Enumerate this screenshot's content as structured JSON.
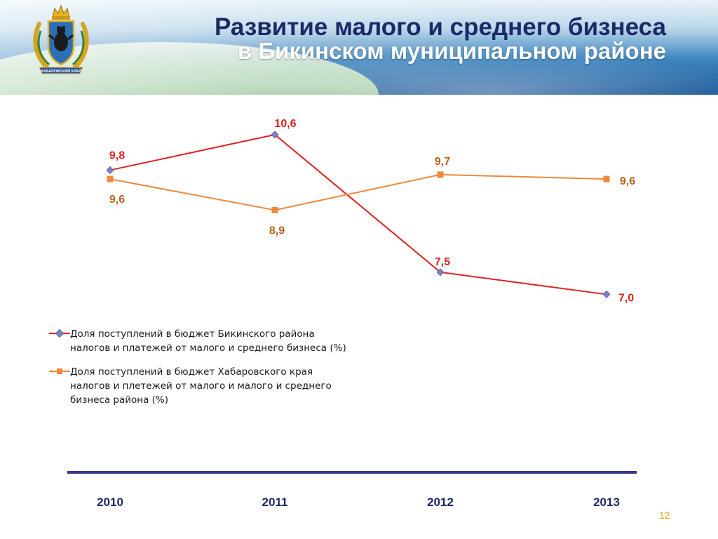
{
  "header": {
    "title_line1": "Развитие малого и среднего бизнеса",
    "title_line2": "в Бикинском муниципальном районе",
    "emblem_caption": "ХАБАРОВСКИЙ КРАЙ",
    "emblem_icon": "coat-of-arms-icon"
  },
  "chart_data": {
    "type": "line",
    "categories": [
      "2010",
      "2011",
      "2012",
      "2013"
    ],
    "series": [
      {
        "name": "Доля поступлений в бюджет Бикинского района налогов и платежей от малого и среднего бизнеса (%)",
        "legend_lines": [
          "Доля поступлений в бюджет Бикинского района",
          "налогов и платежей от малого и среднего бизнеса (%)"
        ],
        "values": [
          9.8,
          10.6,
          7.5,
          7.0
        ],
        "labels": [
          "9,8",
          "10,6",
          "7,5",
          "7,0"
        ],
        "color": "#e02020",
        "marker": "diamond",
        "marker_color": "#7f7fc0"
      },
      {
        "name": "Доля поступлений в бюджет Хабаровского края налогов и плетежей от малого и малого и среднего бизнеса района (%)",
        "legend_lines": [
          "Доля поступлений в бюджет Хабаровского края",
          "налогов и плетежей от малого и малого и среднего",
          "бизнеса района (%)"
        ],
        "values": [
          9.6,
          8.9,
          9.7,
          9.6
        ],
        "labels": [
          "9,6",
          "8,9",
          "9,7",
          "9,6"
        ],
        "color": "#f0883a",
        "marker": "square",
        "marker_color": "#f0883a",
        "label_color": "#b8601a"
      }
    ],
    "y_range": [
      6.2,
      11.5
    ],
    "grid": false,
    "legend_position": "bottom-left"
  },
  "footer": {
    "page_number": "12",
    "page_number_color": "#e3a31c",
    "axis_bar_color": "#343a8c"
  }
}
